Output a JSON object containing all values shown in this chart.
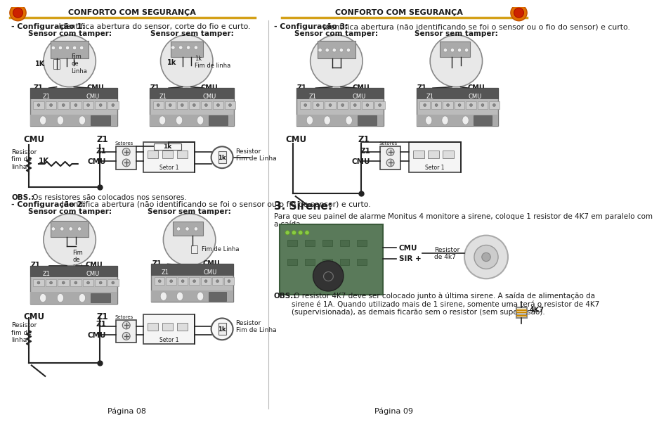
{
  "bg_color": "#ffffff",
  "header_line_color": "#d4a017",
  "header_text": "CONFORTO COM SEGURANÇA",
  "config1_title_bold": "- Configuração 1:",
  "config1_title_rest": " Identifica abertura do sensor, corte do fio e curto.",
  "config2_title_bold": "- Configuração 2:",
  "config2_title_rest": " Idendifica abertura (não identificando se foi o sensor ou o fio do sensor) e curto.",
  "config3_title_bold": "- Configuração 3:",
  "config3_title_rest": " Identifica abertura (não identificando se foi o sensor ou o fio do sensor) e curto.",
  "sensor_com_tamper": "Sensor com tamper:",
  "sensor_sem_tamper": "Sensor sem tamper:",
  "obs1_bold": "OBS.:",
  "obs1_rest": " Os resistores são colocados nos sensores.",
  "obs2_title": "3. Sirene:",
  "obs2_para": "Para que seu painel de alarme Monitus 4 monitore a sirene, coloque 1 resistor de 4K7 em paralelo com\na saída.",
  "obs3_bold": "OBS.:",
  "obs3_rest": " O resistor 4K7 deve ser colocado junto à última sirene. A saída de alimentação da\nsirene é 1A. Quando utilizado mais de 1 sirene, somente uma terá o resistor de 4K7\n(supervisionada), as demais ficarão sem o resistor (sem supervisão).",
  "page_left": "Página 08",
  "page_right": "Página 09",
  "text_color": "#1a1a1a",
  "circuit_color": "#222222",
  "panel_gray_dark": "#888888",
  "panel_gray_mid": "#aaaaaa",
  "panel_gray_light": "#cccccc",
  "sensor_bg": "#e8e8e8",
  "sensor_inner": "#d0d0d0"
}
